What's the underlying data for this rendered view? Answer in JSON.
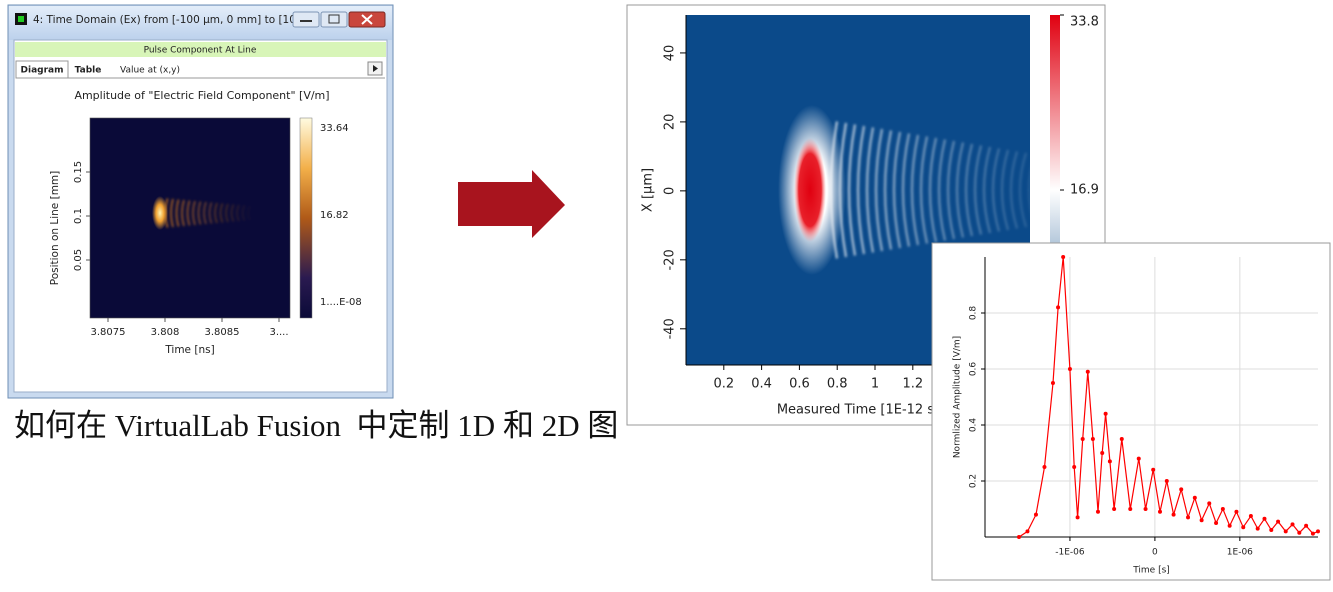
{
  "window": {
    "title": "4: Time Domain (Ex) from [-100 µm, 0 mm] to [100...",
    "subtitle": "Pulse Component At Line",
    "tabs": [
      "Diagram",
      "Table",
      "Value at (x,y)"
    ],
    "plot": {
      "title": "Amplitude of \"Electric Field Component\"  [V/m]",
      "xlabel": "Time [ns]",
      "ylabel": "Position on Line [mm]",
      "xticks": [
        "3.8075",
        "3.808",
        "3.8085",
        "3...."
      ],
      "yticks": [
        "0.15",
        "0.1",
        "0.05"
      ],
      "colorbar_ticks": [
        "33.64",
        "16.82",
        "1....E-08"
      ]
    }
  },
  "caption": "如何在 VirtualLab Fusion  中定制 1D 和 2D 图",
  "heatmap": {
    "xlabel": "Measured Time [1E-12 s]",
    "ylabel": "X [µm]",
    "xlim": [
      0,
      1.82
    ],
    "xticks": [
      0.2,
      0.4,
      0.6,
      0.8,
      1,
      1.2
    ],
    "ylim": [
      -50.5,
      51
    ],
    "yticks": [
      40,
      20,
      0,
      -20,
      -40
    ],
    "colorbar_lim": [
      0,
      33.8
    ],
    "colorbar_ticks": [
      33.8,
      16.9
    ]
  },
  "chart_data": {
    "type": "line",
    "xlabel": "Time [s]",
    "ylabel": "Normlized Amplitude [V/m]",
    "color": "#ff0000",
    "grid": true,
    "xlim": [
      -2e-06,
      1.92e-06
    ],
    "xticks": [
      {
        "value": -1e-06,
        "label": "-1E-06"
      },
      0,
      {
        "value": 1e-06,
        "label": "1E-06"
      }
    ],
    "ylim": [
      0,
      1
    ],
    "yticks": [
      0.2,
      0.4,
      0.6,
      0.8
    ],
    "x": [
      -1.6e-06,
      -1.5e-06,
      -1.4e-06,
      -1.3e-06,
      -1.2e-06,
      -1.14e-06,
      -1.08e-06,
      -1e-06,
      -9.5e-07,
      -9.1e-07,
      -8.5e-07,
      -7.9e-07,
      -7.3e-07,
      -6.7e-07,
      -6.2e-07,
      -5.8e-07,
      -5.3e-07,
      -4.8e-07,
      -3.9e-07,
      -2.9e-07,
      -1.9e-07,
      -1.1e-07,
      -2e-08,
      6e-08,
      1.4e-07,
      2.2e-07,
      3.1e-07,
      3.9e-07,
      4.7e-07,
      5.5e-07,
      6.4e-07,
      7.2e-07,
      8e-07,
      8.8e-07,
      9.6e-07,
      1.04e-06,
      1.13e-06,
      1.21e-06,
      1.29e-06,
      1.37e-06,
      1.45e-06,
      1.54e-06,
      1.62e-06,
      1.7e-06,
      1.78e-06,
      1.86e-06,
      1.92e-06
    ],
    "values": [
      0,
      0.02,
      0.08,
      0.25,
      0.55,
      0.82,
      1.0,
      0.6,
      0.25,
      0.07,
      0.35,
      0.59,
      0.35,
      0.09,
      0.3,
      0.44,
      0.27,
      0.1,
      0.35,
      0.1,
      0.28,
      0.1,
      0.24,
      0.09,
      0.2,
      0.08,
      0.17,
      0.07,
      0.14,
      0.06,
      0.12,
      0.05,
      0.1,
      0.04,
      0.09,
      0.035,
      0.075,
      0.03,
      0.065,
      0.025,
      0.055,
      0.02,
      0.045,
      0.015,
      0.04,
      0.012,
      0.02
    ]
  }
}
